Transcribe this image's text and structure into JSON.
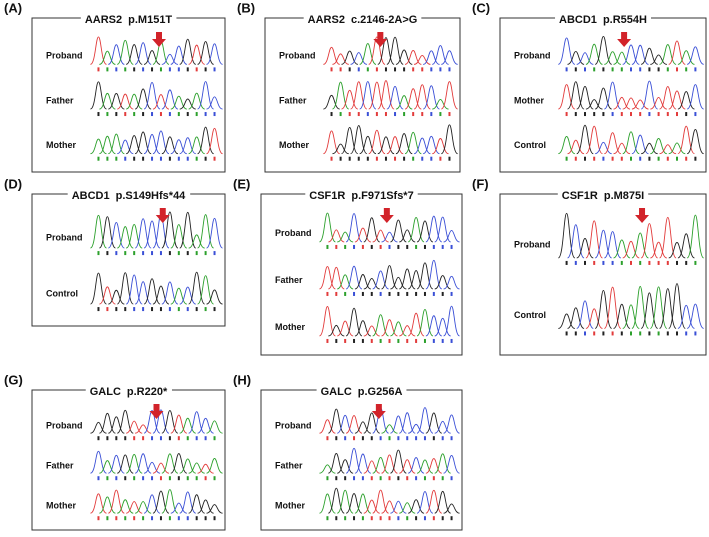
{
  "panels": [
    {
      "label": "(A)",
      "gene": "AARS2",
      "variant": "p.M151T",
      "rows": [
        "Proband",
        "Father",
        "Mother"
      ]
    },
    {
      "label": "(B)",
      "gene": "AARS2",
      "variant": "c.2146-2A>G",
      "rows": [
        "Proband",
        "Father",
        "Mother"
      ]
    },
    {
      "label": "(C)",
      "gene": "ABCD1",
      "variant": "p.R554H",
      "rows": [
        "Proband",
        "Mother",
        "Control"
      ]
    },
    {
      "label": "(D)",
      "gene": "ABCD1",
      "variant": "p.S149Hfs*44",
      "rows": [
        "Proband",
        "Control"
      ]
    },
    {
      "label": "(E)",
      "gene": "CSF1R",
      "variant": "p.F971Sfs*7",
      "rows": [
        "Proband",
        "Father",
        "Mother"
      ]
    },
    {
      "label": "(F)",
      "gene": "CSF1R",
      "variant": "p.M875I",
      "rows": [
        "Proband",
        "Control"
      ]
    },
    {
      "label": "(G)",
      "gene": "GALC",
      "variant": "p.R220*",
      "rows": [
        "Proband",
        "Father",
        "Mother"
      ]
    },
    {
      "label": "(H)",
      "gene": "GALC",
      "variant": "p.G256A",
      "rows": [
        "Proband",
        "Father",
        "Mother"
      ]
    }
  ]
}
